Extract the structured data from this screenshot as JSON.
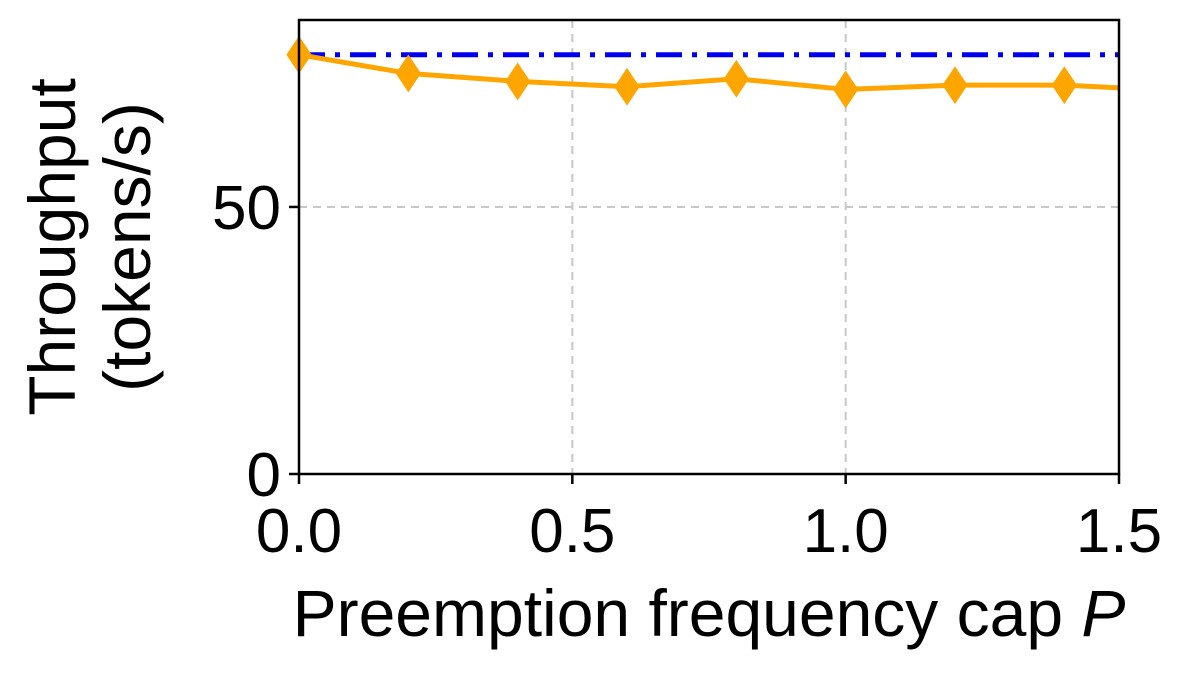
{
  "chart_data": {
    "type": "line",
    "xlabel_text": "Preemption frequency cap ",
    "xlabel_var": "P",
    "ylabel_lines": [
      "Throughput",
      "(tokens/s)"
    ],
    "xlim": [
      0,
      1.5
    ],
    "ylim": [
      0,
      85
    ],
    "xticks": [
      0.0,
      0.5,
      1.0,
      1.5
    ],
    "xtick_labels": [
      "0.0",
      "0.5",
      "1.0",
      "1.5"
    ],
    "yticks": [
      0,
      50
    ],
    "ytick_labels": [
      "0",
      "50"
    ],
    "grid": true,
    "series": [
      {
        "style": "solid",
        "marker": "diamond",
        "color": "#FFA500",
        "x": [
          0.0,
          0.2,
          0.4,
          0.6,
          0.8,
          1.0,
          1.2,
          1.4,
          1.5
        ],
        "y": [
          78.5,
          75.0,
          73.5,
          72.5,
          74.0,
          72.0,
          72.8,
          72.8,
          72.3
        ]
      },
      {
        "style": "dashdot",
        "marker": "none",
        "color": "#0000EE",
        "x": [
          0.0,
          1.5
        ],
        "y": [
          78.5,
          78.5
        ]
      }
    ]
  }
}
